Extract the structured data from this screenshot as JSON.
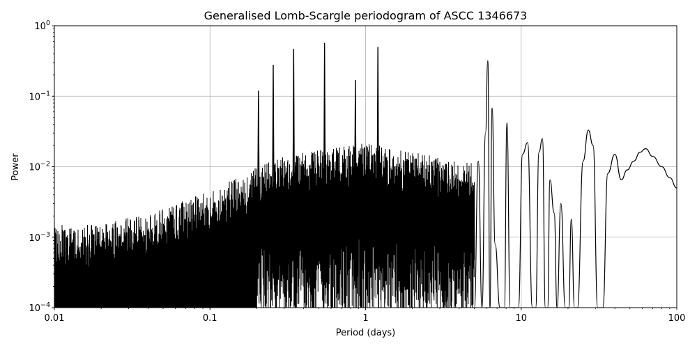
{
  "figure": {
    "background": "#ffffff",
    "grid_color": "#b0b0b0",
    "line_color": "#000000"
  },
  "chart_data": {
    "type": "line",
    "title": "Generalised Lomb-Scargle periodogram of ASCC 1346673",
    "xlabel": "Period (days)",
    "ylabel": "Power",
    "xscale": "log",
    "yscale": "log",
    "xlim": [
      0.01,
      100
    ],
    "ylim": [
      0.0001,
      1
    ],
    "grid": true,
    "legend": null,
    "x_ticks": [
      {
        "value": 0.01,
        "label": "0.01"
      },
      {
        "value": 0.1,
        "label": "0.1"
      },
      {
        "value": 1,
        "label": "1"
      },
      {
        "value": 10,
        "label": "10"
      },
      {
        "value": 100,
        "label": "100"
      }
    ],
    "y_ticks": [
      {
        "value": 0.0001,
        "base": "10",
        "exp": "−4"
      },
      {
        "value": 0.001,
        "base": "10",
        "exp": "−3"
      },
      {
        "value": 0.01,
        "base": "10",
        "exp": "−2"
      },
      {
        "value": 0.1,
        "base": "10",
        "exp": "−1"
      },
      {
        "value": 1,
        "base": "10",
        "exp": "0"
      }
    ],
    "noise_envelope": {
      "description": "Dense noise floor; upper envelope rises with period",
      "x": [
        0.01,
        0.02,
        0.03,
        0.05,
        0.07,
        0.1,
        0.15,
        0.2,
        0.3,
        0.5,
        0.8,
        1.0,
        1.5,
        2.0,
        3.0,
        4.0,
        5.0
      ],
      "upper": [
        0.0015,
        0.0015,
        0.0019,
        0.0025,
        0.0035,
        0.0045,
        0.007,
        0.01,
        0.014,
        0.018,
        0.02,
        0.022,
        0.018,
        0.016,
        0.014,
        0.012,
        0.012
      ],
      "lower": [
        0.0001,
        0.0001,
        0.0001,
        0.0001,
        0.0001,
        0.0001,
        0.0001,
        0.0001,
        0.0001,
        0.0001,
        0.0001,
        0.0001,
        0.0001,
        0.0001,
        0.0001,
        0.0001,
        0.0001
      ]
    },
    "peaks": [
      {
        "period": 0.205,
        "power": 0.12
      },
      {
        "period": 0.255,
        "power": 0.28
      },
      {
        "period": 0.345,
        "power": 0.47
      },
      {
        "period": 0.545,
        "power": 0.57
      },
      {
        "period": 0.86,
        "power": 0.17
      },
      {
        "period": 1.2,
        "power": 0.5
      },
      {
        "period": 6.1,
        "power": 0.32
      },
      {
        "period": 6.5,
        "power": 0.068
      },
      {
        "period": 8.1,
        "power": 0.042
      },
      {
        "period": 11.0,
        "power": 0.022
      },
      {
        "period": 13.7,
        "power": 0.025
      },
      {
        "period": 15.3,
        "power": 0.0065
      },
      {
        "period": 18.0,
        "power": 0.003
      },
      {
        "period": 21.0,
        "power": 0.0018
      },
      {
        "period": 27.0,
        "power": 0.033
      },
      {
        "period": 40.0,
        "power": 0.015
      },
      {
        "period": 63.0,
        "power": 0.018
      }
    ],
    "smooth_tail": {
      "x": [
        5.0,
        5.3,
        5.6,
        5.9,
        6.1,
        6.3,
        6.5,
        6.8,
        7.3,
        7.8,
        8.1,
        8.5,
        9.0,
        9.6,
        10.2,
        11.0,
        11.8,
        12.4,
        13.0,
        13.7,
        14.3,
        14.8,
        15.3,
        16.3,
        17.0,
        18.0,
        19.2,
        20.2,
        21.0,
        22.0,
        23.0,
        25.0,
        27.0,
        29.0,
        31.0,
        33.5,
        36.0,
        40.0,
        44.0,
        48.0,
        53.0,
        58.0,
        63.0,
        70.0,
        80.0,
        90.0,
        100.0
      ],
      "y": [
        0.0001,
        0.012,
        0.0001,
        0.03,
        0.32,
        0.0001,
        0.068,
        0.0008,
        0.0001,
        0.0001,
        0.042,
        0.0001,
        0.0001,
        0.0001,
        0.015,
        0.022,
        0.0001,
        0.0001,
        0.016,
        0.025,
        0.0001,
        0.0001,
        0.0065,
        0.0022,
        0.0001,
        0.003,
        0.0001,
        0.0001,
        0.0018,
        0.0001,
        0.0001,
        0.012,
        0.033,
        0.02,
        0.0001,
        0.0001,
        0.008,
        0.015,
        0.0065,
        0.009,
        0.012,
        0.016,
        0.018,
        0.014,
        0.01,
        0.007,
        0.005
      ]
    }
  }
}
